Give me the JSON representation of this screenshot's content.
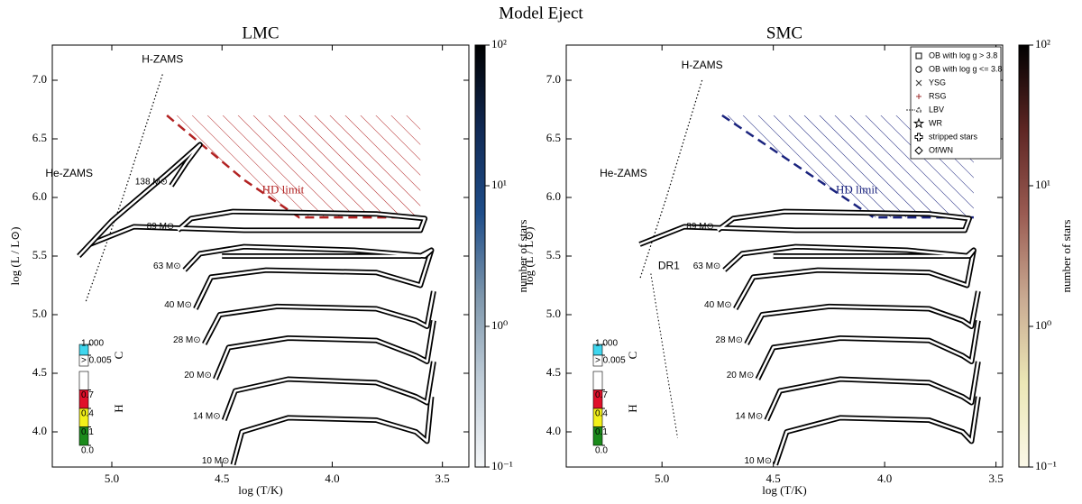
{
  "title": "Model Eject",
  "abundance_key": {
    "C": {
      "label": "C",
      "ticks": [
        {
          "value": 1,
          "label": "1.000"
        },
        {
          "value": 0.005,
          "label": "> 0.005"
        }
      ],
      "colors": [
        "#3fd6ee",
        "#ffffff"
      ]
    },
    "H": {
      "label": "H",
      "ticks": [
        0.7,
        0.4,
        0.1,
        {
          "value": 0,
          "label": "0.0"
        }
      ],
      "colors": [
        "#ffffff",
        "#e0102a",
        "#f2f01a",
        "#1b8a1b"
      ]
    }
  },
  "legend": {
    "entries": [
      {
        "label": "OB with log g > 3.8",
        "marker": "square",
        "color": "#000000"
      },
      {
        "label": "OB with log g <= 3.8",
        "marker": "circle",
        "color": "#000000"
      },
      {
        "label": "YSG",
        "marker": "x",
        "color": "#333333"
      },
      {
        "label": "RSG",
        "marker": "plus",
        "color": "#a03030"
      },
      {
        "label": "LBV",
        "marker": "triangle",
        "color": "#333333"
      },
      {
        "label": "WR",
        "marker": "star",
        "color": "#000000"
      },
      {
        "label": "stripped stars",
        "marker": "cross",
        "color": "#000000"
      },
      {
        "label": "Of/WN",
        "marker": "diamond",
        "color": "#000000"
      }
    ]
  },
  "chart_data": [
    {
      "type": "line",
      "title": "LMC",
      "xlabel": "log (T/K)",
      "ylabel": "log (L / L⊙)",
      "xlim": [
        5.27,
        3.38
      ],
      "ylim": [
        3.7,
        7.3
      ],
      "xticks": [
        {
          "value": 5,
          "label": "5.0"
        },
        4.5,
        {
          "value": 4,
          "label": "4.0"
        },
        3.5
      ],
      "yticks": [
        {
          "value": 4,
          "label": "4.0"
        },
        4.5,
        {
          "value": 5,
          "label": "5.0"
        },
        5.5,
        {
          "value": 6,
          "label": "6.0"
        },
        6.5,
        {
          "value": 7,
          "label": "7.0"
        }
      ],
      "colorbar": {
        "label": "number of stars",
        "lim": [
          0.1,
          100
        ],
        "log": true,
        "ticks": [
          {
            "value": 100,
            "label": "10²"
          },
          {
            "value": 10,
            "label": "10¹"
          },
          {
            "value": 1,
            "label": "10⁰"
          },
          {
            "value": 0.1,
            "label": "10⁻¹"
          }
        ],
        "colors": [
          "#f5f7f9",
          "#c2cfda",
          "#7f98ad",
          "#1f4e8a",
          "#112a55",
          "#000000"
        ]
      },
      "hd_limit": {
        "label": "HD limit",
        "color": "#b22222",
        "x": [
          4.75,
          4.4,
          4.15,
          3.6
        ],
        "y": [
          6.7,
          6.15,
          5.83,
          5.83
        ]
      },
      "zams": {
        "label": "H-ZAMS",
        "x": [
          4.77,
          4.95,
          5.12
        ],
        "y": [
          7.05,
          6.0,
          5.1
        ]
      },
      "he_zams_label": "He-ZAMS",
      "series": [
        {
          "name": "10 M⊙",
          "x": [
            4.45,
            4.41,
            4.2,
            3.8,
            3.62,
            3.57,
            3.55
          ],
          "y": [
            3.72,
            4.0,
            4.12,
            4.1,
            4.0,
            3.92,
            4.3
          ]
        },
        {
          "name": "14 M⊙",
          "x": [
            4.49,
            4.44,
            4.2,
            3.8,
            3.62,
            3.57,
            3.54
          ],
          "y": [
            4.1,
            4.35,
            4.45,
            4.42,
            4.3,
            4.25,
            4.6
          ]
        },
        {
          "name": "20 M⊙",
          "x": [
            4.53,
            4.47,
            4.2,
            3.8,
            3.62,
            3.57,
            3.54
          ],
          "y": [
            4.45,
            4.72,
            4.8,
            4.78,
            4.65,
            4.6,
            4.95
          ]
        },
        {
          "name": "28 M⊙",
          "x": [
            4.58,
            4.51,
            4.25,
            3.8,
            3.62,
            3.57,
            3.54
          ],
          "y": [
            4.75,
            5.0,
            5.07,
            5.05,
            4.95,
            4.9,
            5.2
          ]
        },
        {
          "name": "40 M⊙",
          "x": [
            4.62,
            4.55,
            4.3,
            3.8,
            3.6,
            3.55
          ],
          "y": [
            5.05,
            5.32,
            5.38,
            5.36,
            5.25,
            5.55
          ]
        },
        {
          "name": "63 M⊙",
          "x": [
            4.67,
            4.6,
            4.4,
            3.9,
            3.58,
            3.55,
            3.6,
            4.5
          ],
          "y": [
            5.38,
            5.52,
            5.58,
            5.55,
            5.5,
            5.55,
            5.5,
            5.5
          ]
        },
        {
          "name": "89 M⊙",
          "x": [
            4.7,
            4.64,
            4.45,
            3.8,
            3.58,
            3.6,
            4.4,
            4.9,
            5.1
          ],
          "y": [
            5.72,
            5.82,
            5.88,
            5.86,
            5.82,
            5.72,
            5.72,
            5.75,
            5.6
          ]
        },
        {
          "name": "138 M⊙",
          "x": [
            4.73,
            4.66,
            4.6,
            4.75,
            5.0,
            5.15
          ],
          "y": [
            6.1,
            6.3,
            6.45,
            6.2,
            5.8,
            5.5
          ]
        }
      ]
    },
    {
      "type": "line",
      "title": "SMC",
      "xlabel": "log (T/K)",
      "ylabel": "log (L / L⊙)",
      "xlim": [
        5.43,
        3.47
      ],
      "ylim": [
        3.7,
        7.3
      ],
      "xticks": [
        {
          "value": 5,
          "label": "5.0"
        },
        4.5,
        {
          "value": 4,
          "label": "4.0"
        },
        3.5
      ],
      "yticks": [
        {
          "value": 4,
          "label": "4.0"
        },
        4.5,
        {
          "value": 5,
          "label": "5.0"
        },
        5.5,
        {
          "value": 6,
          "label": "6.0"
        },
        6.5,
        {
          "value": 7,
          "label": "7.0"
        }
      ],
      "colorbar": {
        "label": "number of stars",
        "lim": [
          0.1,
          100
        ],
        "log": true,
        "ticks": [
          {
            "value": 100,
            "label": "10²"
          },
          {
            "value": 10,
            "label": "10¹"
          },
          {
            "value": 1,
            "label": "10⁰"
          },
          {
            "value": 0.1,
            "label": "10⁻¹"
          }
        ],
        "colors": [
          "#fbf8e8",
          "#ebe7b6",
          "#c9aa92",
          "#9a5b52",
          "#5e2624",
          "#000000"
        ]
      },
      "hd_limit": {
        "label": "HD limit",
        "color": "#1a237e",
        "x": [
          4.73,
          4.3,
          4.05,
          3.6
        ],
        "y": [
          6.7,
          6.15,
          5.83,
          5.83
        ]
      },
      "zams": {
        "label": "H-ZAMS",
        "x": [
          4.82,
          4.98,
          5.1
        ],
        "y": [
          7.0,
          6.0,
          5.3
        ]
      },
      "he_zams_label": "He-ZAMS",
      "dr1": {
        "label": "DR1",
        "x": [
          5.05,
          4.93
        ],
        "y": [
          5.35,
          3.95
        ]
      },
      "series": [
        {
          "name": "10 M⊙",
          "x": [
            4.49,
            4.44,
            4.2,
            3.8,
            3.65,
            3.61,
            3.58
          ],
          "y": [
            3.72,
            4.0,
            4.12,
            4.1,
            4.0,
            3.92,
            4.3
          ]
        },
        {
          "name": "14 M⊙",
          "x": [
            4.53,
            4.47,
            4.2,
            3.8,
            3.65,
            3.61,
            3.58
          ],
          "y": [
            4.1,
            4.35,
            4.45,
            4.42,
            4.3,
            4.25,
            4.6
          ]
        },
        {
          "name": "20 M⊙",
          "x": [
            4.57,
            4.5,
            4.2,
            3.8,
            3.65,
            3.61,
            3.58
          ],
          "y": [
            4.45,
            4.72,
            4.8,
            4.78,
            4.65,
            4.6,
            4.95
          ]
        },
        {
          "name": "28 M⊙",
          "x": [
            4.62,
            4.55,
            4.25,
            3.8,
            3.65,
            3.61,
            3.58
          ],
          "y": [
            4.75,
            5.0,
            5.07,
            5.05,
            4.95,
            4.9,
            5.2
          ]
        },
        {
          "name": "40 M⊙",
          "x": [
            4.67,
            4.59,
            4.3,
            3.8,
            3.63,
            3.6
          ],
          "y": [
            5.05,
            5.32,
            5.38,
            5.36,
            5.25,
            5.55
          ]
        },
        {
          "name": "63 M⊙",
          "x": [
            4.72,
            4.64,
            4.4,
            3.9,
            3.62,
            3.6,
            3.63,
            4.5
          ],
          "y": [
            5.38,
            5.52,
            5.58,
            5.55,
            5.5,
            5.55,
            5.5,
            5.5
          ]
        },
        {
          "name": "89 M⊙",
          "x": [
            4.75,
            4.68,
            4.45,
            3.8,
            3.62,
            3.64,
            4.4,
            4.9,
            5.1
          ],
          "y": [
            5.72,
            5.82,
            5.88,
            5.86,
            5.82,
            5.72,
            5.72,
            5.75,
            5.6
          ]
        }
      ]
    }
  ]
}
